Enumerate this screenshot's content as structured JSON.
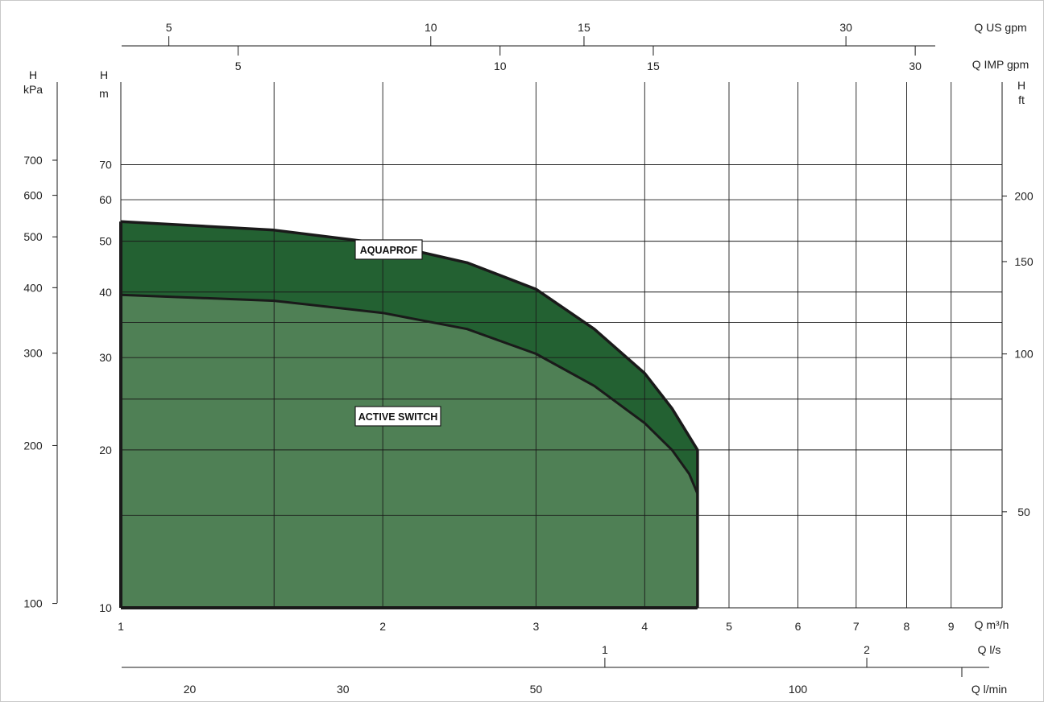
{
  "chart_data": {
    "type": "area",
    "x_scale": "log",
    "y_scale": "log",
    "xlim": [
      1,
      10
    ],
    "ylim": [
      10,
      80
    ],
    "grid": true,
    "xlabel": "Q m³/h",
    "ylabel": "H m",
    "x_ticks": [
      1,
      2,
      3,
      4,
      5,
      6,
      7,
      8,
      9
    ],
    "x_minor_gridlines": [
      1.5
    ],
    "y_ticks": [
      10,
      20,
      30,
      40,
      50,
      60,
      70
    ],
    "y_minor_gridlines": [
      15,
      25,
      35
    ],
    "series": [
      {
        "name": "AQUAPROF",
        "color": "#236132",
        "x": [
          1,
          1.5,
          2,
          2.5,
          3,
          3.5,
          4,
          4.3,
          4.6,
          4.6
        ],
        "y": [
          54.5,
          52.5,
          49.5,
          45.5,
          40.5,
          34,
          28,
          24,
          20,
          10
        ]
      },
      {
        "name": "ACTIVE SWITCH",
        "color": "#4f8055",
        "x": [
          1,
          1.5,
          2,
          2.5,
          3,
          3.5,
          4,
          4.3,
          4.5,
          4.6,
          4.6
        ],
        "y": [
          39.5,
          38.5,
          36.5,
          34,
          30.5,
          26.5,
          22.5,
          20,
          18,
          16.5,
          10
        ]
      }
    ],
    "secondary_axes": {
      "us_gpm": {
        "unit": "Q US gpm",
        "ticks": [
          "5",
          "10",
          "15",
          "30"
        ]
      },
      "imp_gpm": {
        "unit": "Q IMP gpm",
        "ticks": [
          "5",
          "10",
          "15",
          "30"
        ]
      },
      "kpa": {
        "title": "H",
        "unit": "kPa",
        "ticks": [
          "100",
          "200",
          "300",
          "400",
          "500",
          "600",
          "700"
        ]
      },
      "ft": {
        "title": "H",
        "unit": "ft",
        "ticks": [
          "50",
          "100",
          "150",
          "200"
        ]
      },
      "ls": {
        "unit": "Q l/s",
        "ticks": [
          "1",
          "2"
        ]
      },
      "lmin": {
        "unit": "Q l/min",
        "ticks": [
          "20",
          "30",
          "50",
          "100"
        ]
      },
      "m_title": "H",
      "m_unit": "m",
      "m3h_unit": "Q m³/h"
    }
  }
}
